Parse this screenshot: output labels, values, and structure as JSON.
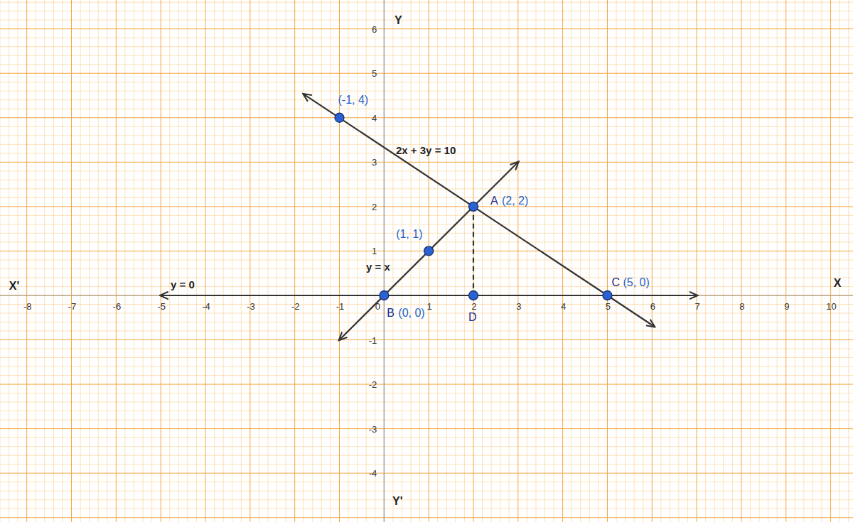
{
  "chart_data": {
    "type": "line",
    "xlim": [
      -8.6,
      10.5
    ],
    "ylim": [
      -5.1,
      6.65
    ],
    "xticks": [
      -8,
      -7,
      -6,
      -5,
      -4,
      -3,
      -2,
      -1,
      0,
      1,
      2,
      3,
      4,
      5,
      6,
      7,
      8,
      9,
      10
    ],
    "yticks": [
      -4,
      -3,
      -2,
      -1,
      1,
      2,
      3,
      4,
      5,
      6
    ],
    "grid": true,
    "xlabel": "X",
    "xlabel_neg": "X'",
    "ylabel": "Y",
    "ylabel_neg": "Y'",
    "series": [
      {
        "name": "2x + 3y = 10",
        "type": "line",
        "color": "#333333",
        "marker": "arrow",
        "x": [
          -1.8,
          6.05
        ],
        "values": [
          4.53,
          -0.7
        ]
      },
      {
        "name": "y = x",
        "type": "line",
        "color": "#333333",
        "marker": "arrow",
        "x": [
          -1,
          3
        ],
        "values": [
          -1,
          3
        ]
      },
      {
        "name": "y = 0",
        "type": "line",
        "color": "#333333",
        "marker": "arrow",
        "x": [
          -5,
          7
        ],
        "values": [
          0,
          0
        ]
      },
      {
        "type": "line",
        "color": "#333333",
        "line_style": "dashed",
        "x": [
          2,
          2
        ],
        "values": [
          2,
          0
        ]
      },
      {
        "type": "scatter",
        "color": "#2a62d4",
        "marker": "circle",
        "x": [
          -1,
          1,
          2,
          0,
          5,
          2
        ],
        "values": [
          4,
          1,
          2,
          0,
          0,
          0
        ],
        "labels": [
          "(-1, 4)",
          "(1, 1)",
          "(2, 2)",
          "(0, 0)",
          "(5, 0)",
          null
        ],
        "letters": [
          null,
          null,
          "A",
          "B",
          "C",
          "D"
        ]
      }
    ]
  }
}
